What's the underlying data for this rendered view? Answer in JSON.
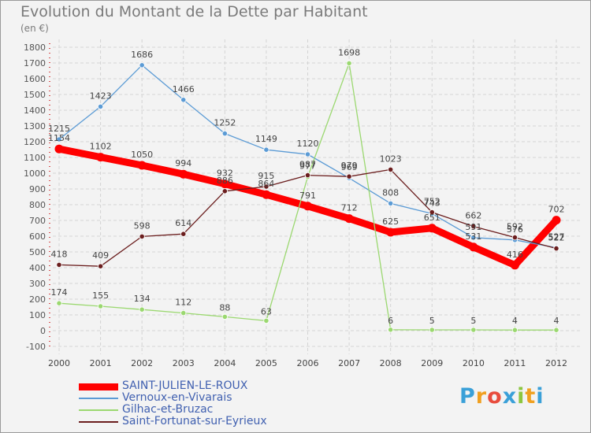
{
  "title": "Evolution du Montant de la Dette par Habitant",
  "subtitle": "(en €)",
  "logo": {
    "text": "Proxiti",
    "letter_colors": [
      "#3aa0d8",
      "#f0a020",
      "#e84c3d",
      "#3aa0d8",
      "#8cc63f",
      "#f0a020",
      "#3aa0d8"
    ]
  },
  "chart_data": {
    "type": "line",
    "title": "Evolution du Montant de la Dette par Habitant",
    "ylabel": "(en €)",
    "xlabel": "",
    "x": [
      "2000",
      "2001",
      "2002",
      "2003",
      "2004",
      "2005",
      "2006",
      "2007",
      "2008",
      "2009",
      "2010",
      "2011",
      "2012"
    ],
    "ylim": [
      -100,
      1800
    ],
    "yticks": [
      "-100",
      "0",
      "100",
      "200",
      "300",
      "400",
      "500",
      "600",
      "700",
      "800",
      "900",
      "1000",
      "1100",
      "1200",
      "1300",
      "1400",
      "1500",
      "1600",
      "1700",
      "1800"
    ],
    "grid": true,
    "legend_position": "bottom-left",
    "series": [
      {
        "name": "SAINT-JULIEN-LE-ROUX",
        "color": "#ff0000",
        "values": [
          1154,
          1102,
          1050,
          994,
          932,
          864,
          791,
          712,
          625,
          651,
          531,
          416,
          702
        ],
        "labels": [
          "1154",
          "1102",
          "1050",
          "994",
          "932",
          "864",
          "791",
          "712",
          "625",
          "651",
          "531",
          "416",
          "702"
        ]
      },
      {
        "name": "Vernoux-en-Vivarais",
        "color": "#5b9bd5",
        "values": [
          1215,
          1423,
          1686,
          1466,
          1252,
          1149,
          1120,
          969,
          808,
          743,
          591,
          576,
          527
        ],
        "labels": [
          "1215",
          "1423",
          "1686",
          "1466",
          "1252",
          "1149",
          "1120",
          "969",
          "808",
          "743",
          "591",
          "576",
          "527"
        ]
      },
      {
        "name": "Gilhac-et-Bruzac",
        "color": "#9bd870",
        "values": [
          174,
          155,
          134,
          112,
          88,
          63,
          977,
          1698,
          6,
          5,
          5,
          4,
          4
        ],
        "labels": [
          "174",
          "155",
          "134",
          "112",
          "88",
          "63",
          "977",
          "1698",
          "6",
          "5",
          "5",
          "4",
          "4"
        ]
      },
      {
        "name": "Saint-Fortunat-sur-Eyrieux",
        "color": "#6b1e1e",
        "values": [
          418,
          409,
          598,
          614,
          886,
          915,
          987,
          979,
          1023,
          752,
          662,
          592,
          522
        ],
        "labels": [
          "418",
          "409",
          "598",
          "614",
          "886",
          "915",
          "987",
          "979",
          "1023",
          "752",
          "662",
          "592",
          "522"
        ]
      }
    ]
  }
}
